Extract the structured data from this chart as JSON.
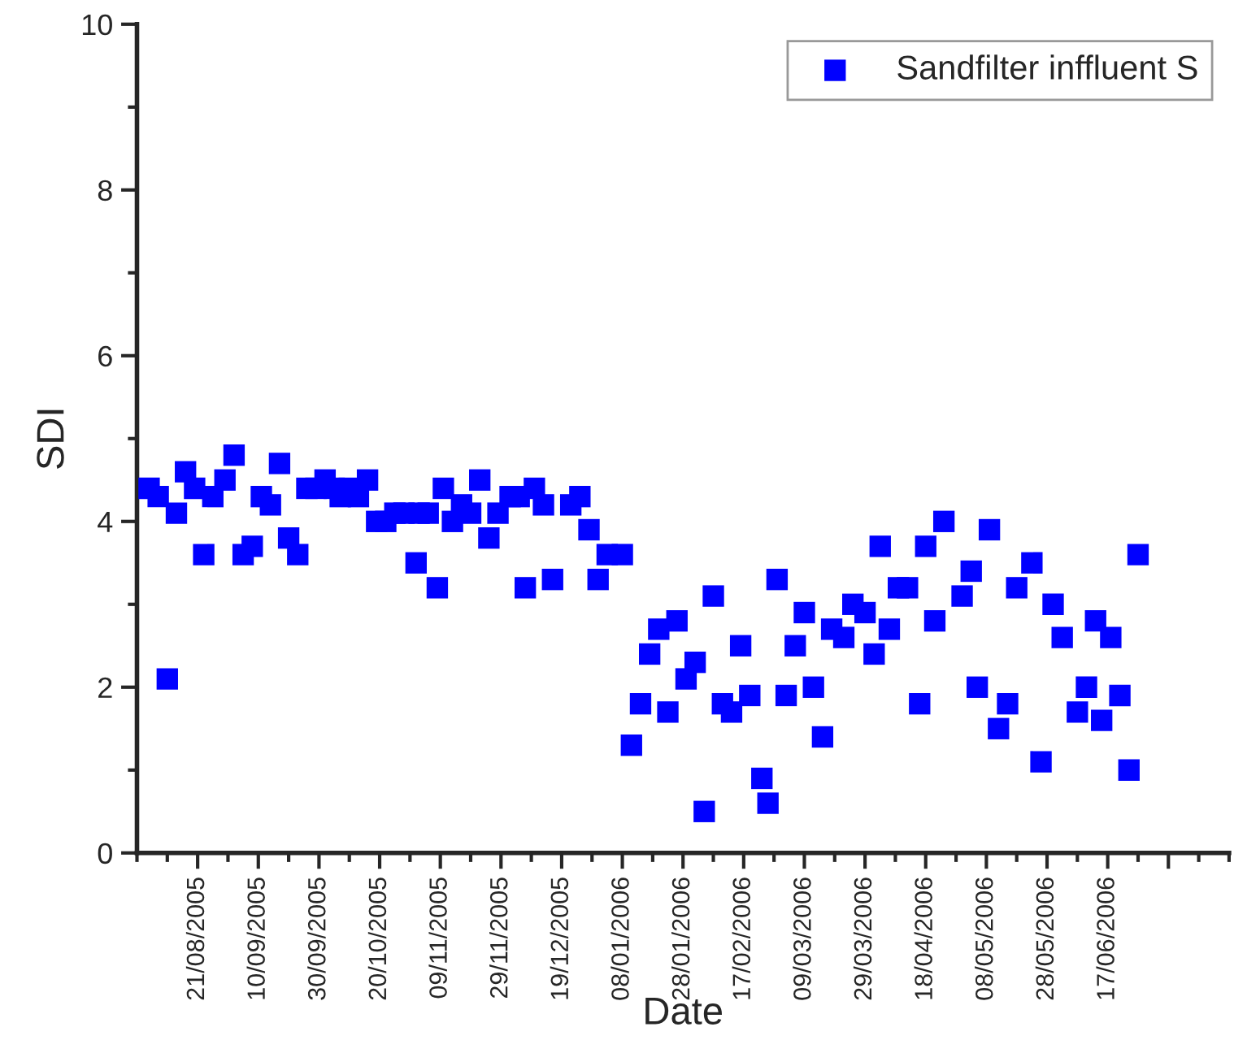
{
  "chart_data": {
    "type": "scatter",
    "xlabel": "Date",
    "ylabel": "SDI",
    "xlim": [
      "2005-08-01",
      "2006-07-27"
    ],
    "ylim": [
      0,
      10
    ],
    "yticks": [
      0,
      2,
      4,
      6,
      8,
      10
    ],
    "xticks": [
      {
        "value": "2005-08-21",
        "label": "21/08/2005"
      },
      {
        "value": "2005-09-10",
        "label": "10/09/2005"
      },
      {
        "value": "2005-09-30",
        "label": "30/09/2005"
      },
      {
        "value": "2005-10-20",
        "label": "20/10/2005"
      },
      {
        "value": "2005-11-09",
        "label": "09/11/2005"
      },
      {
        "value": "2005-11-29",
        "label": "29/11/2005"
      },
      {
        "value": "2005-12-19",
        "label": "19/12/2005"
      },
      {
        "value": "2006-01-08",
        "label": "08/01/2006"
      },
      {
        "value": "2006-01-28",
        "label": "28/01/2006"
      },
      {
        "value": "2006-02-17",
        "label": "17/02/2006"
      },
      {
        "value": "2006-03-09",
        "label": "09/03/2006"
      },
      {
        "value": "2006-03-29",
        "label": "29/03/2006"
      },
      {
        "value": "2006-04-18",
        "label": "18/04/2006"
      },
      {
        "value": "2006-05-08",
        "label": "08/05/2006"
      },
      {
        "value": "2006-05-28",
        "label": "28/05/2006"
      },
      {
        "value": "2006-06-17",
        "label": "17/06/2006"
      },
      {
        "value": "2006-07-07",
        "label": null
      }
    ],
    "marker": "square",
    "legend": "top right",
    "grid": false,
    "series": [
      {
        "name": "Sandfilter inffluent S",
        "color": "#0000ff",
        "x": [
          "2005-08-05",
          "2005-08-08",
          "2005-08-11",
          "2005-08-14",
          "2005-08-17",
          "2005-08-20",
          "2005-08-23",
          "2005-08-26",
          "2005-08-30",
          "2005-09-02",
          "2005-09-05",
          "2005-09-08",
          "2005-09-11",
          "2005-09-14",
          "2005-09-17",
          "2005-09-20",
          "2005-09-23",
          "2005-09-26",
          "2005-09-29",
          "2005-10-02",
          "2005-10-05",
          "2005-10-07",
          "2005-10-10",
          "2005-10-13",
          "2005-10-16",
          "2005-10-19",
          "2005-10-22",
          "2005-10-25",
          "2005-10-28",
          "2005-11-01",
          "2005-11-02",
          "2005-11-05",
          "2005-11-08",
          "2005-11-10",
          "2005-11-13",
          "2005-11-16",
          "2005-11-19",
          "2005-11-22",
          "2005-11-25",
          "2005-11-28",
          "2005-12-02",
          "2005-12-05",
          "2005-12-07",
          "2005-12-10",
          "2005-12-13",
          "2005-12-16",
          "2005-12-22",
          "2005-12-25",
          "2005-12-28",
          "2005-12-31",
          "2006-01-03",
          "2006-01-08",
          "2006-01-11",
          "2006-01-14",
          "2006-01-17",
          "2006-01-20",
          "2006-01-23",
          "2006-01-26",
          "2006-01-29",
          "2006-02-01",
          "2006-02-04",
          "2006-02-07",
          "2006-02-10",
          "2006-02-13",
          "2006-02-16",
          "2006-02-19",
          "2006-02-23",
          "2006-02-25",
          "2006-02-28",
          "2006-03-03",
          "2006-03-06",
          "2006-03-09",
          "2006-03-12",
          "2006-03-15",
          "2006-03-18",
          "2006-03-22",
          "2006-03-25",
          "2006-03-29",
          "2006-04-01",
          "2006-04-03",
          "2006-04-06",
          "2006-04-09",
          "2006-04-12",
          "2006-04-16",
          "2006-04-18",
          "2006-04-21",
          "2006-04-24",
          "2006-04-30",
          "2006-05-03",
          "2006-05-05",
          "2006-05-09",
          "2006-05-12",
          "2006-05-15",
          "2006-05-18",
          "2006-05-23",
          "2006-05-26",
          "2006-05-30",
          "2006-06-02",
          "2006-06-07",
          "2006-06-10",
          "2006-06-13",
          "2006-06-15",
          "2006-06-18",
          "2006-06-21",
          "2006-06-24",
          "2006-06-27"
        ],
        "values": [
          4.4,
          4.3,
          2.1,
          4.1,
          4.6,
          4.4,
          3.6,
          4.3,
          4.5,
          4.8,
          3.6,
          3.7,
          4.3,
          4.2,
          4.7,
          3.8,
          3.6,
          4.4,
          4.4,
          4.5,
          4.4,
          4.3,
          4.4,
          4.3,
          4.5,
          4.0,
          4.0,
          4.1,
          4.1,
          3.5,
          4.1,
          4.1,
          3.2,
          4.4,
          4.0,
          4.2,
          4.1,
          4.5,
          3.8,
          4.1,
          4.3,
          4.3,
          3.2,
          4.4,
          4.2,
          3.3,
          4.2,
          4.3,
          3.9,
          3.3,
          3.6,
          3.6,
          1.3,
          1.8,
          2.4,
          2.7,
          1.7,
          2.8,
          2.1,
          2.3,
          0.5,
          3.1,
          1.8,
          1.7,
          2.5,
          1.9,
          0.9,
          0.6,
          3.3,
          1.9,
          2.5,
          2.9,
          2.0,
          1.4,
          2.7,
          2.6,
          3.0,
          2.9,
          2.4,
          3.7,
          2.7,
          3.2,
          3.2,
          1.8,
          3.7,
          2.8,
          4.0,
          3.1,
          3.4,
          2.0,
          3.9,
          1.5,
          1.8,
          3.2,
          3.5,
          1.1,
          3.0,
          2.6,
          1.7,
          2.0,
          2.8,
          1.6,
          2.6,
          1.9,
          1.0,
          3.6
        ]
      }
    ]
  }
}
